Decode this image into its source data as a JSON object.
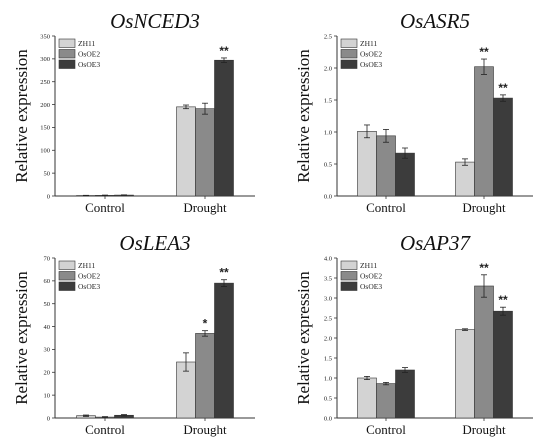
{
  "chart_data": [
    {
      "type": "bar",
      "title": "OsNCED3",
      "ylabel": "Relative expression",
      "xlabel": "",
      "categories": [
        "Control",
        "Drought"
      ],
      "ylim": [
        0,
        350
      ],
      "yticks": [
        0,
        50,
        100,
        150,
        200,
        250,
        300,
        350
      ],
      "series": [
        {
          "name": "ZH11",
          "values": [
            1,
            195
          ],
          "errors": [
            0.5,
            4
          ]
        },
        {
          "name": "OsOE2",
          "values": [
            1.5,
            191
          ],
          "errors": [
            0.5,
            12
          ]
        },
        {
          "name": "OsOE3",
          "values": [
            2,
            297
          ],
          "errors": [
            0.5,
            5
          ]
        }
      ],
      "significance": [
        {
          "series": 2,
          "category": 1,
          "label": "**"
        }
      ],
      "legend": "top-left"
    },
    {
      "type": "bar",
      "title": "OsASR5",
      "ylabel": "Relative expression",
      "xlabel": "",
      "categories": [
        "Control",
        "Drought"
      ],
      "ylim": [
        0,
        2.5
      ],
      "yticks": [
        0.0,
        0.5,
        1.0,
        1.5,
        2.0,
        2.5
      ],
      "yticklabels": [
        "0.0",
        "0.5",
        "1.0",
        "1.5",
        "2.0",
        "2.5"
      ],
      "series": [
        {
          "name": "ZH11",
          "values": [
            1.01,
            0.53
          ],
          "errors": [
            0.1,
            0.05
          ]
        },
        {
          "name": "OsOE2",
          "values": [
            0.94,
            2.02
          ],
          "errors": [
            0.1,
            0.12
          ]
        },
        {
          "name": "OsOE3",
          "values": [
            0.67,
            1.53
          ],
          "errors": [
            0.08,
            0.05
          ]
        }
      ],
      "significance": [
        {
          "series": 1,
          "category": 1,
          "label": "**"
        },
        {
          "series": 2,
          "category": 1,
          "label": "**"
        }
      ],
      "legend": "top-left"
    },
    {
      "type": "bar",
      "title": "OsLEA3",
      "ylabel": "Relative expression",
      "xlabel": "",
      "categories": [
        "Control",
        "Drought"
      ],
      "ylim": [
        0,
        70
      ],
      "yticks": [
        0,
        10,
        20,
        30,
        40,
        50,
        60,
        70
      ],
      "series": [
        {
          "name": "ZH11",
          "values": [
            1,
            24.5
          ],
          "errors": [
            0.3,
            4
          ]
        },
        {
          "name": "OsOE2",
          "values": [
            0.4,
            37
          ],
          "errors": [
            0.2,
            1.2
          ]
        },
        {
          "name": "OsOE3",
          "values": [
            1.2,
            59
          ],
          "errors": [
            0.3,
            1.5
          ]
        }
      ],
      "significance": [
        {
          "series": 1,
          "category": 1,
          "label": "*"
        },
        {
          "series": 2,
          "category": 1,
          "label": "**"
        }
      ],
      "legend": "top-left"
    },
    {
      "type": "bar",
      "title": "OsAP37",
      "ylabel": "Relative expression",
      "xlabel": "",
      "categories": [
        "Control",
        "Drought"
      ],
      "ylim": [
        0,
        4.0
      ],
      "yticks": [
        0.0,
        0.5,
        1.0,
        1.5,
        2.0,
        2.5,
        3.0,
        3.5,
        4.0
      ],
      "yticklabels": [
        "0.0",
        "0.5",
        "1.0",
        "1.5",
        "2.0",
        "2.5",
        "3.0",
        "3.5",
        "4.0"
      ],
      "series": [
        {
          "name": "ZH11",
          "values": [
            1.0,
            2.21
          ],
          "errors": [
            0.04,
            0.02
          ]
        },
        {
          "name": "OsOE2",
          "values": [
            0.86,
            3.3
          ],
          "errors": [
            0.03,
            0.28
          ]
        },
        {
          "name": "OsOE3",
          "values": [
            1.2,
            2.67
          ],
          "errors": [
            0.06,
            0.1
          ]
        }
      ],
      "significance": [
        {
          "series": 1,
          "category": 1,
          "label": "**"
        },
        {
          "series": 2,
          "category": 1,
          "label": "**"
        }
      ],
      "legend": "top-left"
    }
  ],
  "colors": {
    "series": [
      "#d3d3d3",
      "#8a8a8a",
      "#3c3c3c"
    ]
  }
}
